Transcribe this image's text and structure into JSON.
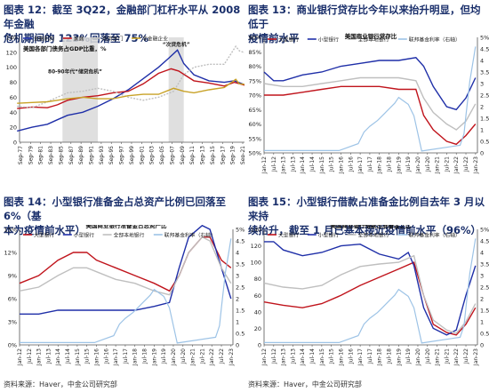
{
  "panels": [
    {
      "title_line1": "图表 12：截至 3Q22，金融部门杠杆水平从 2008 年金融",
      "title_line2": "危机期间的 123%回落至 75%"
    },
    {
      "title_line1": "图表 13：商业银行贷存比今年以来抬升明显，但均低于",
      "title_line2": "疫情前水平"
    },
    {
      "title_line1": "图表 14：小型银行准备金占总资产比例已回落至 6%（基",
      "title_line2": "本为疫情前水平）"
    },
    {
      "title_line1": "图表 15：小型银行借款占准备金比例自去年 3 月以来持",
      "title_line2": "续抬升，截至 1 月已基本接近疫情前水平（96%）"
    }
  ],
  "source": "资料来源：Haver，中金公司研究部",
  "chart_data": [
    {
      "type": "line",
      "subtitle": "美国各部门债务占GDP比重，%",
      "legend": [
        "金融机构",
        "家庭",
        "政府部门",
        "非金融企业"
      ],
      "colors": [
        "#1f2fa8",
        "#c0141c",
        "#bfbfbf",
        "#c8a227"
      ],
      "ylim": [
        0,
        140
      ],
      "yticks": [
        0,
        20,
        40,
        60,
        80,
        100,
        120,
        140
      ],
      "xticks": [
        "Sep-77",
        "Sep-79",
        "Sep-81",
        "Sep-83",
        "Sep-85",
        "Sep-87",
        "Sep-89",
        "Sep-91",
        "Sep-93",
        "Sep-95",
        "Sep-97",
        "Sep-99",
        "Sep-01",
        "Sep-03",
        "Sep-05",
        "Sep-07",
        "Sep-09",
        "Sep-11",
        "Sep-13",
        "Sep-15",
        "Sep-17",
        "Sep-19",
        "Sep-21"
      ],
      "annotations": [
        "80-90年代“储贷危机”",
        "“次贷危机”"
      ],
      "shaded": [
        [
          1986,
          1993
        ],
        [
          2007,
          2010
        ]
      ],
      "series": [
        {
          "name": "金融机构",
          "x": [
            1977,
            1980,
            1983,
            1985,
            1987,
            1990,
            1993,
            1996,
            1999,
            2002,
            2005,
            2007,
            2008.75,
            2010,
            2012,
            2015,
            2018,
            2020,
            2022.7
          ],
          "values": [
            15,
            20,
            24,
            30,
            36,
            40,
            48,
            58,
            70,
            85,
            100,
            112,
            123,
            105,
            90,
            82,
            80,
            82,
            75
          ]
        },
        {
          "name": "家庭",
          "x": [
            1977,
            1980,
            1983,
            1985,
            1987,
            1990,
            1993,
            1996,
            1999,
            2002,
            2005,
            2007.5,
            2009,
            2012,
            2015,
            2018,
            2020,
            2022.7
          ],
          "values": [
            45,
            47,
            46,
            50,
            56,
            60,
            62,
            66,
            68,
            78,
            92,
            98,
            95,
            82,
            79,
            75,
            80,
            75
          ]
        },
        {
          "name": "政府部门",
          "x": [
            1977,
            1980,
            1983,
            1985,
            1987,
            1990,
            1993,
            1996,
            1999,
            2002,
            2005,
            2008,
            2010,
            2012,
            2015,
            2018,
            2020.3,
            2021,
            2022.7
          ],
          "values": [
            48,
            46,
            54,
            60,
            66,
            68,
            72,
            68,
            60,
            56,
            60,
            68,
            90,
            100,
            104,
            104,
            128,
            122,
            118
          ]
        },
        {
          "name": "非金融企业",
          "x": [
            1977,
            1980,
            1983,
            1985,
            1987,
            1990,
            1993,
            1996,
            1999,
            2002,
            2005,
            2008,
            2010,
            2012,
            2015,
            2018,
            2020.3,
            2021,
            2022.7
          ],
          "values": [
            52,
            53,
            54,
            56,
            58,
            60,
            58,
            58,
            62,
            64,
            64,
            72,
            68,
            66,
            70,
            73,
            84,
            78,
            77
          ]
        }
      ]
    },
    {
      "type": "line",
      "subtitle": "美国商业银行贷存比",
      "legend": [
        "大型银行",
        "小型银行",
        "全部本地银行",
        "联邦基金利率（右轴）"
      ],
      "colors": [
        "#c0141c",
        "#1f2fa8",
        "#bfbfbf",
        "#9dc3e6"
      ],
      "ylim": [
        50,
        90
      ],
      "yticks": [
        50,
        55,
        60,
        65,
        70,
        75,
        80,
        85,
        90
      ],
      "y2lim": [
        0,
        5
      ],
      "y2ticks": [
        0,
        0.5,
        1,
        1.5,
        2,
        2.5,
        3,
        3.5,
        4,
        4.5,
        5
      ],
      "xticks": [
        "Jan-12",
        "Jul-12",
        "Jan-13",
        "Jul-13",
        "Jan-14",
        "Jul-14",
        "Jan-15",
        "Jul-15",
        "Jan-16",
        "Jul-16",
        "Jan-17",
        "Jul-17",
        "Jan-18",
        "Jul-18",
        "Jan-19",
        "Jul-19",
        "Jan-20",
        "Jul-20",
        "Jan-21",
        "Jul-21",
        "Jan-22",
        "Jul-22",
        "Jan-23"
      ],
      "series": [
        {
          "name": "大型银行",
          "x": [
            2012,
            2013,
            2014,
            2015,
            2016,
            2017,
            2018,
            2019,
            2019.9,
            2020.3,
            2020.8,
            2021.5,
            2022,
            2022.5,
            2023
          ],
          "values": [
            70,
            70,
            71,
            72,
            73,
            73,
            73,
            72,
            72,
            63,
            58,
            54,
            53,
            56,
            60
          ]
        },
        {
          "name": "小型银行",
          "x": [
            2012,
            2012.5,
            2013,
            2014,
            2015,
            2016,
            2017,
            2018,
            2019,
            2019.9,
            2020.3,
            2020.8,
            2021.5,
            2022,
            2022.5,
            2023
          ],
          "values": [
            78,
            75,
            75,
            77,
            78,
            80,
            81,
            82,
            82,
            83,
            80,
            73,
            66,
            65,
            69,
            76
          ]
        },
        {
          "name": "全部本地银行",
          "x": [
            2012,
            2013,
            2014,
            2015,
            2016,
            2017,
            2018,
            2019,
            2019.9,
            2020.3,
            2020.8,
            2021.5,
            2022,
            2022.5,
            2023
          ],
          "values": [
            74,
            73,
            73,
            74,
            75,
            76,
            76,
            76,
            75,
            69,
            64,
            60,
            58,
            61,
            67
          ]
        },
        {
          "name": "联邦基金利率（右轴）",
          "x": [
            2012,
            2015.9,
            2016.9,
            2017.2,
            2017.5,
            2017.9,
            2018.2,
            2018.5,
            2018.8,
            2019.0,
            2019.5,
            2019.8,
            2020.2,
            2022.2,
            2022.4,
            2022.5,
            2022.7,
            2022.9,
            2023
          ],
          "values": [
            0.1,
            0.1,
            0.4,
            0.9,
            1.15,
            1.4,
            1.65,
            1.9,
            2.15,
            2.4,
            2.1,
            1.6,
            0.08,
            0.33,
            0.83,
            1.6,
            3.1,
            4.1,
            4.6
          ]
        }
      ]
    },
    {
      "type": "line",
      "subtitle": "美国商业银行准备金占总资产比",
      "legend": [
        "大型银行",
        "小型银行",
        "全部本地银行",
        "联邦基金利率（右轴）"
      ],
      "colors": [
        "#c0141c",
        "#1f2fa8",
        "#bfbfbf",
        "#9dc3e6"
      ],
      "ylim": [
        0,
        15
      ],
      "yticks": [
        0,
        3,
        6,
        9,
        12,
        15
      ],
      "y2lim": [
        0,
        5
      ],
      "y2ticks": [
        0,
        0.5,
        1,
        1.5,
        2,
        2.5,
        3,
        3.5,
        4,
        4.5,
        5
      ],
      "xticks": [
        "Jan-12",
        "Jul-12",
        "Jan-13",
        "Jul-13",
        "Jan-14",
        "Jul-14",
        "Jan-15",
        "Jul-15",
        "Jan-16",
        "Jul-16",
        "Jan-17",
        "Jul-17",
        "Jan-18",
        "Jul-18",
        "Jan-19",
        "Jul-19",
        "Jan-20",
        "Jul-20",
        "Jan-21",
        "Jul-21",
        "Jan-22",
        "Jul-22",
        "Jan-23"
      ],
      "series": [
        {
          "name": "大型银行",
          "x": [
            2012,
            2013,
            2014,
            2014.8,
            2015.5,
            2016,
            2017,
            2018,
            2019,
            2019.8,
            2020.3,
            2020.8,
            2021.5,
            2021.9,
            2022.5,
            2023
          ],
          "values": [
            8,
            9,
            11,
            12,
            12,
            11,
            10,
            9,
            8,
            7,
            9,
            12,
            14,
            14,
            11,
            10
          ]
        },
        {
          "name": "小型银行",
          "x": [
            2012,
            2013,
            2014,
            2015,
            2016,
            2017,
            2018,
            2019,
            2019.8,
            2020.3,
            2020.8,
            2021.5,
            2021.9,
            2022.5,
            2023
          ],
          "values": [
            4,
            4,
            4.5,
            4.5,
            4.5,
            4.5,
            4.5,
            5,
            5.5,
            10,
            14,
            15.5,
            15,
            10,
            6
          ]
        },
        {
          "name": "全部本地银行",
          "x": [
            2012,
            2013,
            2014,
            2014.8,
            2015.5,
            2016,
            2017,
            2018,
            2019,
            2019.8,
            2020.3,
            2020.8,
            2021.5,
            2021.9,
            2022.5,
            2023
          ],
          "values": [
            7,
            7.5,
            9,
            10,
            10,
            9.5,
            8.5,
            8,
            7,
            6.5,
            9,
            12,
            14,
            13.5,
            10,
            8
          ]
        },
        {
          "name": "联邦基金利率（右轴）",
          "x": [
            2012,
            2015.9,
            2016.9,
            2017.2,
            2017.5,
            2017.9,
            2018.2,
            2018.5,
            2018.8,
            2019.0,
            2019.5,
            2019.8,
            2020.2,
            2022.2,
            2022.4,
            2022.5,
            2022.7,
            2022.9,
            2023
          ],
          "values": [
            0.1,
            0.1,
            0.4,
            0.9,
            1.15,
            1.4,
            1.65,
            1.9,
            2.15,
            2.4,
            2.1,
            1.6,
            0.08,
            0.33,
            0.83,
            1.6,
            3.1,
            4.1,
            4.6
          ]
        }
      ]
    },
    {
      "type": "line",
      "subtitle": "美国商业银行借款占准备金之比",
      "legend": [
        "大型银行",
        "小型银行",
        "全部本地银行",
        "联邦基金利率（右轴）"
      ],
      "colors": [
        "#c0141c",
        "#1f2fa8",
        "#bfbfbf",
        "#9dc3e6"
      ],
      "ylim": [
        0,
        140
      ],
      "yticks": [
        0,
        20,
        40,
        60,
        80,
        100,
        120,
        140
      ],
      "y2lim": [
        0,
        5
      ],
      "y2ticks": [
        0,
        0.5,
        1,
        1.5,
        2,
        2.5,
        3,
        3.5,
        4,
        4.5,
        5
      ],
      "xticks": [
        "Jan-12",
        "Jul-12",
        "Jan-13",
        "Jul-13",
        "Jan-14",
        "Jul-14",
        "Jan-15",
        "Jul-15",
        "Jan-16",
        "Jul-16",
        "Jan-17",
        "Jul-17",
        "Jan-18",
        "Jul-18",
        "Jan-19",
        "Jul-19",
        "Jan-20",
        "Jul-20",
        "Jan-21",
        "Jul-21",
        "Jan-22",
        "Jul-22",
        "Jan-23"
      ],
      "series": [
        {
          "name": "大型银行",
          "x": [
            2012,
            2013,
            2014,
            2015,
            2016,
            2017,
            2018,
            2019,
            2019.8,
            2020.3,
            2020.8,
            2021.5,
            2022,
            2022.5,
            2023
          ],
          "values": [
            52,
            48,
            45,
            50,
            60,
            72,
            82,
            92,
            100,
            60,
            25,
            15,
            12,
            25,
            45
          ]
        },
        {
          "name": "小型银行",
          "x": [
            2012,
            2012.5,
            2013,
            2014,
            2015,
            2016,
            2017,
            2018,
            2019,
            2019.5,
            2019.8,
            2020.3,
            2020.8,
            2021.5,
            2022,
            2022.5,
            2023
          ],
          "values": [
            125,
            125,
            115,
            108,
            112,
            120,
            122,
            110,
            104,
            112,
            96,
            45,
            20,
            12,
            18,
            60,
            96
          ]
        },
        {
          "name": "全部本地银行",
          "x": [
            2012,
            2013,
            2014,
            2015,
            2016,
            2017,
            2018,
            2019,
            2019.8,
            2020.3,
            2020.8,
            2021.5,
            2022,
            2022.5,
            2023
          ],
          "values": [
            75,
            70,
            68,
            72,
            85,
            95,
            98,
            100,
            108,
            60,
            30,
            18,
            14,
            28,
            50
          ]
        },
        {
          "name": "联邦基金利率（右轴）",
          "x": [
            2012,
            2015.9,
            2016.9,
            2017.2,
            2017.5,
            2017.9,
            2018.2,
            2018.5,
            2018.8,
            2019.0,
            2019.5,
            2019.8,
            2020.2,
            2022.2,
            2022.4,
            2022.5,
            2022.7,
            2022.9,
            2023
          ],
          "values": [
            0.1,
            0.1,
            0.4,
            0.9,
            1.15,
            1.4,
            1.65,
            1.9,
            2.15,
            2.4,
            2.1,
            1.6,
            0.08,
            0.33,
            0.83,
            1.6,
            3.1,
            4.1,
            4.6
          ]
        }
      ]
    }
  ]
}
